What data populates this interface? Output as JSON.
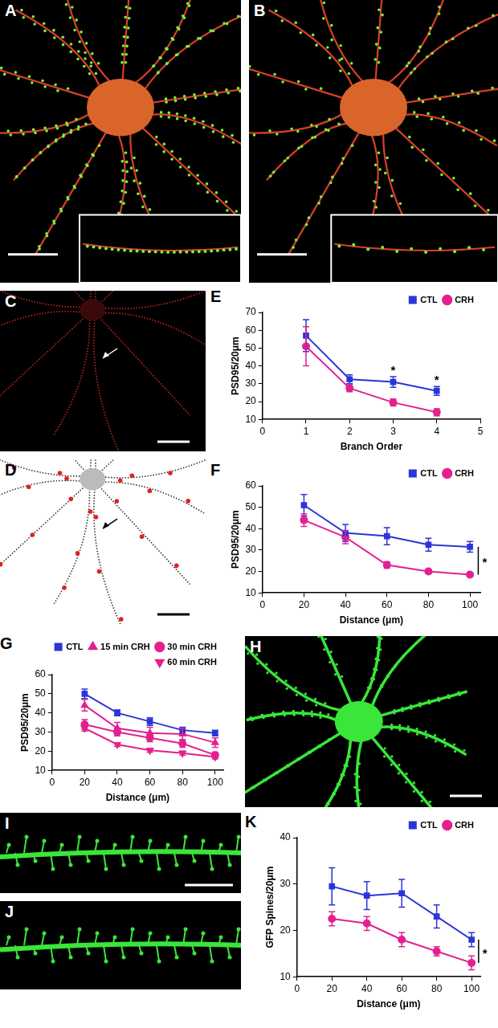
{
  "images": [
    {
      "panel": "A"
    },
    {
      "panel": "B"
    },
    {
      "panel": "C"
    },
    {
      "panel": "D"
    },
    {
      "panel": "H"
    },
    {
      "panel": "I"
    },
    {
      "panel": "J"
    }
  ],
  "chart_data": [
    {
      "panel": "E",
      "type": "line",
      "x_label": "Branch Order",
      "y_label": "PSD95/20μm",
      "x": [
        1,
        2,
        3,
        4
      ],
      "xlim": [
        0,
        5
      ],
      "xticks": [
        0,
        1,
        2,
        3,
        4,
        5
      ],
      "ylim": [
        10,
        70
      ],
      "yticks": [
        10,
        20,
        30,
        40,
        50,
        60,
        70
      ],
      "grid": false,
      "legend": "upper right",
      "series": [
        {
          "name": "CTL",
          "color": "#2b35d8",
          "marker": "square",
          "values": [
            57,
            32.5,
            31,
            26
          ],
          "errors": [
            9,
            2.5,
            3,
            2.5
          ]
        },
        {
          "name": "CRH",
          "color": "#e2218f",
          "marker": "circle",
          "values": [
            51,
            27.5,
            19.5,
            14
          ],
          "errors": [
            11,
            2,
            2,
            2
          ]
        }
      ],
      "annotations": [
        {
          "text": "*",
          "x": 3,
          "y": 37
        },
        {
          "text": "*",
          "x": 4,
          "y": 32
        }
      ]
    },
    {
      "panel": "F",
      "type": "line",
      "x_label": "Distance (μm)",
      "y_label": "PSD95/20μm",
      "x": [
        20,
        40,
        60,
        80,
        100
      ],
      "xlim": [
        0,
        105
      ],
      "xticks": [
        0,
        20,
        40,
        60,
        80,
        100
      ],
      "ylim": [
        10,
        60
      ],
      "yticks": [
        10,
        20,
        30,
        40,
        50,
        60
      ],
      "grid": false,
      "legend": "upper right",
      "series": [
        {
          "name": "CTL",
          "color": "#2b35d8",
          "marker": "square",
          "values": [
            51,
            38,
            36.5,
            32.5,
            31.5
          ],
          "errors": [
            5,
            4,
            4,
            3,
            2.5
          ]
        },
        {
          "name": "CRH",
          "color": "#e2218f",
          "marker": "circle",
          "values": [
            44,
            36,
            23,
            20,
            18.5
          ],
          "errors": [
            3,
            3,
            1.5,
            1,
            1
          ]
        }
      ],
      "annotations": [
        {
          "text": "*",
          "x": 104,
          "y_from": 31.5,
          "y_to": 18.5
        }
      ]
    },
    {
      "panel": "G",
      "type": "line",
      "x_label": "Distance (μm)",
      "y_label": "PSD95/20μm",
      "x": [
        20,
        40,
        60,
        80,
        100
      ],
      "xlim": [
        0,
        105
      ],
      "xticks": [
        0,
        20,
        40,
        60,
        80,
        100
      ],
      "ylim": [
        10,
        60
      ],
      "yticks": [
        10,
        20,
        30,
        40,
        50,
        60
      ],
      "grid": false,
      "legend": "upper right",
      "series": [
        {
          "name": "CTL",
          "color": "#2b35d8",
          "marker": "square",
          "values": [
            50,
            40,
            35.5,
            31,
            29.5
          ],
          "errors": [
            2.5,
            1.5,
            2,
            1.5,
            1.5
          ]
        },
        {
          "name": "15 min CRH",
          "color": "#e2218f",
          "marker": "triangle",
          "values": [
            44,
            32,
            29.5,
            29,
            24.5
          ],
          "errors": [
            3,
            3,
            3,
            3,
            2.5
          ]
        },
        {
          "name": "30 min CRH",
          "color": "#e2218f",
          "marker": "circle",
          "values": [
            34,
            30,
            27,
            24,
            18
          ],
          "errors": [
            2.5,
            2,
            2,
            2,
            1.5
          ]
        },
        {
          "name": "60 min CRH",
          "color": "#e2218f",
          "marker": "triangle-down",
          "values": [
            32,
            23.5,
            20.5,
            19,
            17
          ],
          "errors": [
            1.5,
            1,
            1,
            1,
            1
          ]
        }
      ]
    },
    {
      "panel": "K",
      "type": "line",
      "x_label": "Distance (μm)",
      "y_label": "GFP Spines/20μm",
      "x": [
        20,
        40,
        60,
        80,
        100
      ],
      "xlim": [
        0,
        105
      ],
      "xticks": [
        0,
        20,
        40,
        60,
        80,
        100
      ],
      "ylim": [
        10,
        40
      ],
      "yticks": [
        10,
        20,
        30,
        40
      ],
      "grid": false,
      "legend": "upper right",
      "series": [
        {
          "name": "CTL",
          "color": "#2b35d8",
          "marker": "square",
          "values": [
            29.5,
            27.5,
            28,
            23,
            18
          ],
          "errors": [
            4,
            3,
            3,
            2.5,
            1.5
          ]
        },
        {
          "name": "CRH",
          "color": "#e2218f",
          "marker": "circle",
          "values": [
            22.5,
            21.5,
            18,
            15.5,
            13
          ],
          "errors": [
            1.5,
            1.5,
            1.5,
            1,
            1.5
          ]
        }
      ],
      "annotations": [
        {
          "text": "*",
          "x": 104,
          "y_from": 18,
          "y_to": 13
        }
      ]
    }
  ]
}
